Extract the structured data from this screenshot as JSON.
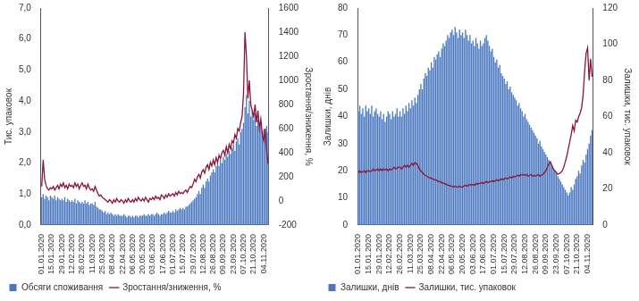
{
  "chart_data": [
    {
      "type": "bar",
      "categories": [
        "01.01.2020",
        null,
        null,
        null,
        null,
        null,
        null,
        "15.01.2020",
        null,
        null,
        null,
        null,
        null,
        null,
        "29.01.2020",
        null,
        null,
        null,
        null,
        null,
        null,
        "12.02.2020",
        null,
        null,
        null,
        null,
        null,
        null,
        "26.02.2020",
        null,
        null,
        null,
        null,
        null,
        null,
        "11.03.2020",
        null,
        null,
        null,
        null,
        null,
        null,
        "25.03.2020",
        null,
        null,
        null,
        null,
        null,
        null,
        "08.04.2020",
        null,
        null,
        null,
        null,
        null,
        null,
        "22.04.2020",
        null,
        null,
        null,
        null,
        null,
        null,
        "06.05.2020",
        null,
        null,
        null,
        null,
        null,
        null,
        "20.05.2020",
        null,
        null,
        null,
        null,
        null,
        null,
        "03.06.2020",
        null,
        null,
        null,
        null,
        null,
        null,
        "17.06.2020",
        null,
        null,
        null,
        null,
        null,
        null,
        "01.07.2020",
        null,
        null,
        null,
        null,
        null,
        null,
        "15.07.2020",
        null,
        null,
        null,
        null,
        null,
        null,
        "29.07.2020",
        null,
        null,
        null,
        null,
        null,
        null,
        "12.08.2020",
        null,
        null,
        null,
        null,
        null,
        null,
        "26.08.2020",
        null,
        null,
        null,
        null,
        null,
        null,
        "09.09.2020",
        null,
        null,
        null,
        null,
        null,
        null,
        "23.09.2020",
        null,
        null,
        null,
        null,
        null,
        null,
        "07.10.2020",
        null,
        null,
        null,
        null,
        null,
        null,
        "21.10.2020",
        null,
        null,
        null,
        null,
        null,
        null,
        "04.11.2020",
        null,
        null,
        null
      ],
      "series": [
        {
          "name": "Обсяги споживання",
          "type": "bar",
          "color": "#4a78c0",
          "values": [
            0.9,
            1.0,
            0.85,
            0.95,
            0.9,
            0.8,
            0.95,
            0.9,
            0.85,
            0.95,
            0.8,
            0.9,
            0.85,
            0.8,
            0.85,
            0.8,
            0.9,
            0.75,
            0.85,
            0.8,
            0.75,
            0.8,
            0.75,
            0.85,
            0.7,
            0.8,
            0.75,
            0.7,
            0.75,
            0.7,
            0.8,
            0.7,
            0.75,
            0.65,
            0.7,
            0.7,
            0.65,
            0.75,
            0.6,
            0.55,
            0.5,
            0.5,
            0.45,
            0.4,
            0.45,
            0.35,
            0.4,
            0.35,
            0.4,
            0.35,
            0.3,
            0.35,
            0.3,
            0.35,
            0.3,
            0.3,
            0.3,
            0.35,
            0.3,
            0.25,
            0.3,
            0.3,
            0.25,
            0.3,
            0.25,
            0.3,
            0.3,
            0.25,
            0.3,
            0.3,
            0.3,
            0.35,
            0.3,
            0.3,
            0.35,
            0.3,
            0.35,
            0.35,
            0.3,
            0.35,
            0.4,
            0.35,
            0.3,
            0.35,
            0.35,
            0.4,
            0.35,
            0.4,
            0.45,
            0.4,
            0.4,
            0.45,
            0.4,
            0.5,
            0.45,
            0.5,
            0.55,
            0.5,
            0.55,
            0.5,
            0.6,
            0.6,
            0.65,
            0.7,
            0.75,
            0.8,
            0.85,
            0.9,
            1.0,
            1.1,
            1.0,
            1.2,
            1.3,
            1.2,
            1.4,
            1.5,
            1.4,
            1.6,
            1.7,
            1.8,
            1.7,
            1.9,
            2.0,
            1.9,
            2.1,
            2.0,
            2.2,
            2.1,
            2.3,
            2.2,
            2.4,
            2.3,
            2.5,
            2.6,
            2.4,
            2.7,
            2.8,
            2.6,
            3.0,
            3.1,
            3.3,
            3.8,
            4.2,
            3.6,
            4.0,
            3.5,
            3.7,
            3.4,
            3.6,
            3.2,
            3.4,
            3.1,
            3.3,
            3.0,
            3.1,
            2.9,
            3.2,
            3.0
          ]
        },
        {
          "name": "Зростання/зниження, %",
          "type": "line",
          "color": "#8b1538",
          "axis": "y2",
          "values": [
            120,
            340,
            180,
            130,
            100,
            90,
            110,
            100,
            120,
            90,
            110,
            130,
            100,
            140,
            120,
            150,
            110,
            130,
            100,
            140,
            120,
            130,
            110,
            150,
            120,
            140,
            100,
            130,
            150,
            120,
            130,
            100,
            140,
            110,
            90,
            100,
            80,
            120,
            90,
            60,
            40,
            50,
            30,
            20,
            10,
            0,
            -10,
            10,
            0,
            -20,
            10,
            -10,
            20,
            0,
            -10,
            10,
            0,
            -20,
            10,
            -10,
            20,
            0,
            -10,
            10,
            -10,
            20,
            0,
            30,
            10,
            0,
            20,
            0,
            30,
            10,
            -10,
            20,
            10,
            30,
            10,
            40,
            20,
            30,
            10,
            50,
            40,
            20,
            50,
            30,
            60,
            40,
            50,
            60,
            40,
            70,
            50,
            80,
            60,
            70,
            60,
            80,
            90,
            70,
            100,
            120,
            110,
            140,
            180,
            160,
            200,
            220,
            190,
            240,
            260,
            230,
            280,
            300,
            260,
            320,
            290,
            340,
            300,
            360,
            320,
            380,
            350,
            400,
            420,
            380,
            450,
            400,
            470,
            430,
            500,
            480,
            550,
            520,
            600,
            580,
            650,
            700,
            900,
            1400,
            1200,
            850,
            1000,
            800,
            750,
            700,
            800,
            650,
            750,
            600,
            680,
            550,
            500,
            600,
            420,
            310
          ]
        }
      ],
      "y_label": "Тис. упаковок",
      "y2_label": "Зростання/зниження, %",
      "ylim": [
        0,
        7
      ],
      "yticks": [
        {
          "value": 0,
          "label": "0,0"
        },
        {
          "value": 1,
          "label": "1,0"
        },
        {
          "value": 2,
          "label": "2,0"
        },
        {
          "value": 3,
          "label": "3,0"
        },
        {
          "value": 4,
          "label": "4,0"
        },
        {
          "value": 5,
          "label": "5,0"
        },
        {
          "value": 6,
          "label": "6,0"
        },
        {
          "value": 7,
          "label": "7,0"
        }
      ],
      "y2lim": [
        -200,
        1600
      ],
      "y2ticks": [
        -200,
        0,
        200,
        400,
        600,
        800,
        1000,
        1200,
        1400,
        1600
      ],
      "grid": false,
      "legend": "bottom"
    },
    {
      "type": "bar",
      "categories": [
        "01.01.2020",
        null,
        null,
        null,
        null,
        null,
        null,
        "15.01.2020",
        null,
        null,
        null,
        null,
        null,
        null,
        "29.01.2020",
        null,
        null,
        null,
        null,
        null,
        null,
        "12.02.2020",
        null,
        null,
        null,
        null,
        null,
        null,
        "26.02.2020",
        null,
        null,
        null,
        null,
        null,
        null,
        "11.03.2020",
        null,
        null,
        null,
        null,
        null,
        null,
        "25.03.2020",
        null,
        null,
        null,
        null,
        null,
        null,
        "08.04.2020",
        null,
        null,
        null,
        null,
        null,
        null,
        "22.04.2020",
        null,
        null,
        null,
        null,
        null,
        null,
        "06.05.2020",
        null,
        null,
        null,
        null,
        null,
        null,
        "20.05.2020",
        null,
        null,
        null,
        null,
        null,
        null,
        "03.06.2020",
        null,
        null,
        null,
        null,
        null,
        null,
        "17.06.2020",
        null,
        null,
        null,
        null,
        null,
        null,
        "01.07.2020",
        null,
        null,
        null,
        null,
        null,
        null,
        "15.07.2020",
        null,
        null,
        null,
        null,
        null,
        null,
        "29.07.2020",
        null,
        null,
        null,
        null,
        null,
        null,
        "12.08.2020",
        null,
        null,
        null,
        null,
        null,
        null,
        "26.08.2020",
        null,
        null,
        null,
        null,
        null,
        null,
        "09.09.2020",
        null,
        null,
        null,
        null,
        null,
        null,
        "23.09.2020",
        null,
        null,
        null,
        null,
        null,
        null,
        "07.10.2020",
        null,
        null,
        null,
        null,
        null,
        null,
        "21.10.2020",
        null,
        null,
        null,
        null,
        null,
        null,
        "04.11.2020",
        null,
        null,
        null
      ],
      "series": [
        {
          "name": "Залишки, днів",
          "type": "bar",
          "color": "#4a78c0",
          "values": [
            42,
            44,
            41,
            43,
            40,
            44,
            42,
            43,
            41,
            44,
            40,
            42,
            43,
            41,
            40,
            42,
            39,
            41,
            38,
            40,
            42,
            41,
            39,
            42,
            40,
            41,
            43,
            40,
            42,
            40,
            43,
            41,
            44,
            42,
            45,
            43,
            46,
            44,
            47,
            45,
            48,
            50,
            52,
            50,
            54,
            56,
            55,
            58,
            57,
            60,
            58,
            62,
            61,
            63,
            64,
            62,
            65,
            67,
            66,
            68,
            70,
            69,
            71,
            72,
            70,
            73,
            71,
            69,
            72,
            70,
            71,
            69,
            72,
            70,
            68,
            70,
            67,
            68,
            66,
            69,
            67,
            65,
            68,
            66,
            67,
            69,
            70,
            68,
            66,
            64,
            65,
            62,
            60,
            61,
            58,
            59,
            56,
            55,
            54,
            52,
            53,
            50,
            51,
            49,
            48,
            47,
            46,
            44,
            45,
            43,
            42,
            40,
            41,
            39,
            38,
            37,
            36,
            35,
            34,
            33,
            32,
            30,
            31,
            29,
            28,
            27,
            26,
            25,
            24,
            23,
            22,
            21,
            20,
            19,
            18,
            17,
            16,
            15,
            14,
            13,
            12,
            11,
            12,
            14,
            13,
            15,
            17,
            18,
            20,
            19,
            22,
            24,
            23,
            26,
            28,
            30,
            33,
            35
          ]
        },
        {
          "name": "Залишки, тис. упаковок",
          "type": "line",
          "color": "#8b1538",
          "axis": "y2",
          "values": [
            29,
            30,
            29,
            29.5,
            30,
            29,
            30,
            30,
            29.5,
            30,
            31,
            30,
            30.5,
            31,
            30,
            31,
            30,
            31,
            30.5,
            31,
            30,
            31,
            30.5,
            31,
            32,
            31,
            31.5,
            32,
            32,
            31,
            32,
            33,
            32,
            33,
            32,
            33,
            34,
            33,
            34.5,
            34,
            33,
            31,
            30,
            29,
            28,
            27.5,
            27,
            26.5,
            26,
            26,
            25.5,
            25,
            25,
            24.5,
            24,
            24,
            23.5,
            23,
            23,
            22.5,
            22,
            22,
            21.5,
            21.5,
            21,
            21.5,
            21,
            21,
            21.5,
            21,
            21,
            21.5,
            22,
            21.5,
            22,
            22.5,
            22,
            22.5,
            22,
            23,
            22.5,
            23,
            23,
            23.5,
            23,
            23.5,
            24,
            23.5,
            24,
            24,
            24.5,
            24,
            24.5,
            25,
            24.5,
            25,
            25.5,
            25,
            25.5,
            26,
            25.5,
            26,
            26.5,
            26,
            27,
            26.5,
            27,
            27.5,
            27,
            28,
            27.5,
            28,
            27.5,
            28,
            27,
            27.5,
            28,
            27,
            27.5,
            27,
            27.5,
            28,
            27,
            27.5,
            28,
            29,
            30,
            32,
            34,
            35,
            33,
            31,
            30,
            29,
            28,
            28.5,
            29,
            30,
            32,
            35,
            38,
            42,
            46,
            50,
            55,
            52,
            58,
            57,
            60,
            62,
            65,
            72,
            85,
            95,
            98,
            80,
            92,
            82
          ]
        }
      ],
      "y_label": "Залишки, днів",
      "y2_label": "Залишки, тис. упаковок",
      "ylim": [
        0,
        80
      ],
      "yticks": [
        0,
        10,
        20,
        30,
        40,
        50,
        60,
        70,
        80
      ],
      "y2lim": [
        0,
        120
      ],
      "y2ticks": [
        0,
        20,
        40,
        60,
        80,
        100,
        120
      ],
      "grid": false,
      "legend": "bottom"
    }
  ]
}
